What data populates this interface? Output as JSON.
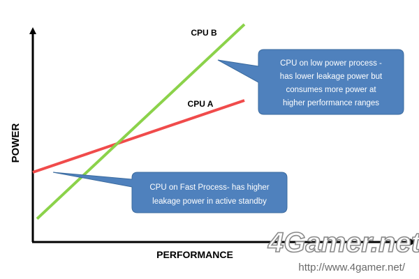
{
  "chart_data": {
    "type": "line",
    "title": "",
    "xlabel": "PERFORMANCE",
    "ylabel": "POWER",
    "xlim": [
      0,
      100
    ],
    "ylim": [
      0,
      100
    ],
    "grid": false,
    "legend": "none",
    "series": [
      {
        "name": "CPU A",
        "color": "#f04b4b",
        "points": [
          {
            "x": 0,
            "y": 33
          },
          {
            "x": 100,
            "y": 67
          }
        ]
      },
      {
        "name": "CPU B",
        "color": "#8bd24a",
        "points": [
          {
            "x": 2,
            "y": 11
          },
          {
            "x": 100,
            "y": 103
          }
        ]
      }
    ],
    "annotations": [
      {
        "lines": [
          "CPU on low power process -",
          "has lower leakage power but",
          "consumes more power at",
          "higher performance ranges"
        ],
        "target": {
          "series": "CPU B",
          "x": 88,
          "y": 91
        },
        "fill": "#4f81bd"
      },
      {
        "lines": [
          "CPU on Fast Process- has higher",
          "leakage power in active standby"
        ],
        "target": {
          "series": "CPU A",
          "x": 9,
          "y": 36
        },
        "fill": "#4f81bd"
      }
    ]
  },
  "watermark": {
    "logo": "4Gamer.net",
    "url": "http://www.4gamer.net/"
  }
}
